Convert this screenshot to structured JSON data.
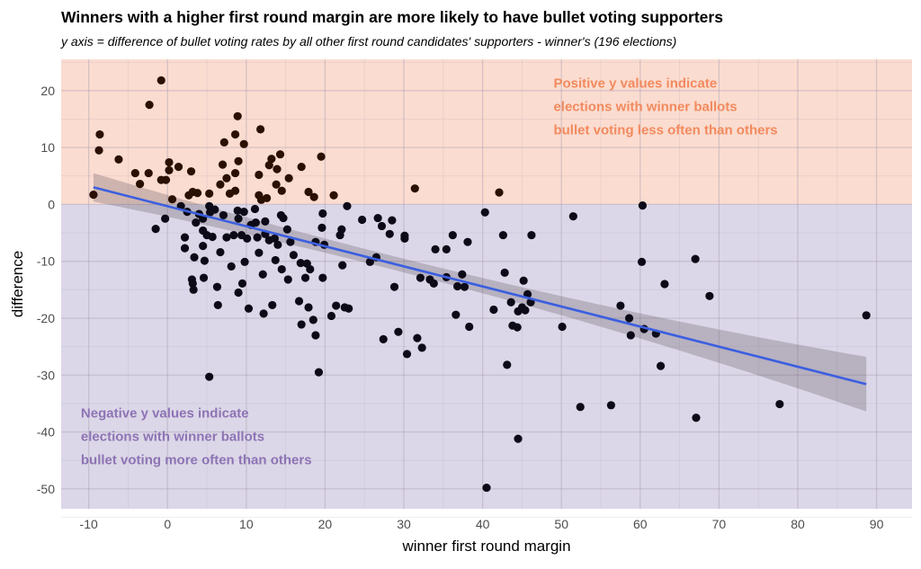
{
  "chart_data": {
    "type": "scatter",
    "title": "Winners with a higher first round margin are more likely to have bullet voting supporters",
    "subtitle": "y axis = difference of bullet voting rates by all other first round candidates' supporters - winner's (196 elections)",
    "xlabel": "winner first round margin",
    "ylabel": "difference",
    "xlim": [
      -13.5,
      94.5
    ],
    "ylim": [
      -53.5,
      25.5
    ],
    "xticks": [
      -10,
      0,
      10,
      20,
      30,
      40,
      50,
      60,
      70,
      80,
      90
    ],
    "xtick_labels": [
      "-10",
      "0",
      "10",
      "20",
      "30",
      "40",
      "50",
      "60",
      "70",
      "80",
      "90"
    ],
    "yticks": [
      20,
      10,
      0,
      -10,
      -20,
      -30,
      -40,
      -50
    ],
    "ytick_labels": [
      "20",
      "10",
      "0",
      "-10",
      "-20",
      "-30",
      "-40",
      "-50"
    ],
    "grid": true,
    "regions": [
      {
        "from": 0,
        "to": 25.5,
        "color": "#fbdcd0"
      },
      {
        "from": -53.5,
        "to": 0,
        "color": "#dcd7e8"
      }
    ],
    "annotations": [
      {
        "lines": [
          "Positive y values indicate",
          "elections with winner ballots",
          "bullet voting less often than others"
        ],
        "color": "#f28a5e",
        "x": 49,
        "y": 20.5
      },
      {
        "lines": [
          "Negative y values indicate",
          "elections with winner ballots",
          "bullet voting more often than others"
        ],
        "color": "#8d74b4",
        "x": -11,
        "y": -37.5
      }
    ],
    "smooth": {
      "method": "linear",
      "color": "#3b5fe0",
      "x_range": [
        -9.4,
        88.7
      ],
      "line": [
        [
          -9.4,
          3.0
        ],
        [
          88.7,
          -31.6
        ]
      ],
      "ci_lower": [
        [
          -9.4,
          0.5
        ],
        [
          25,
          -10.2
        ],
        [
          88.7,
          -36.4
        ]
      ],
      "ci_upper": [
        [
          -9.4,
          5.5
        ],
        [
          25,
          -7.8
        ],
        [
          88.7,
          -26.8
        ]
      ]
    },
    "points": [
      [
        -9.4,
        1.7
      ],
      [
        -8.6,
        12.3
      ],
      [
        -8.7,
        9.5
      ],
      [
        -6.2,
        7.9
      ],
      [
        -4.1,
        5.5
      ],
      [
        -3.5,
        3.6
      ],
      [
        -2.4,
        5.5
      ],
      [
        -2.3,
        17.5
      ],
      [
        -0.8,
        21.8
      ],
      [
        -0.8,
        4.3
      ],
      [
        -0.2,
        4.3
      ],
      [
        0.2,
        6.0
      ],
      [
        0.2,
        7.4
      ],
      [
        1.4,
        6.6
      ],
      [
        3.0,
        5.8
      ],
      [
        2.7,
        1.6
      ],
      [
        3.2,
        2.2
      ],
      [
        3.8,
        2.0
      ],
      [
        5.3,
        1.9
      ],
      [
        6.7,
        3.5
      ],
      [
        7.0,
        7.0
      ],
      [
        7.2,
        10.9
      ],
      [
        7.5,
        4.6
      ],
      [
        7.9,
        1.9
      ],
      [
        8.6,
        2.4
      ],
      [
        8.6,
        5.5
      ],
      [
        8.6,
        12.3
      ],
      [
        8.9,
        15.5
      ],
      [
        9.0,
        7.6
      ],
      [
        9.7,
        10.6
      ],
      [
        11.6,
        1.6
      ],
      [
        11.6,
        5.2
      ],
      [
        11.8,
        13.2
      ],
      [
        11.9,
        0.8
      ],
      [
        12.9,
        6.9
      ],
      [
        13.2,
        8.0
      ],
      [
        13.8,
        3.5
      ],
      [
        13.9,
        6.2
      ],
      [
        14.3,
        8.8
      ],
      [
        14.5,
        2.4
      ],
      [
        15.4,
        4.6
      ],
      [
        17.0,
        6.6
      ],
      [
        17.9,
        2.2
      ],
      [
        18.6,
        1.3
      ],
      [
        19.5,
        8.4
      ],
      [
        21.1,
        1.6
      ],
      [
        31.4,
        2.8
      ],
      [
        42.1,
        2.1
      ],
      [
        0.6,
        0.9
      ],
      [
        12.6,
        1.1
      ],
      [
        -1.5,
        -4.3
      ],
      [
        -0.3,
        -2.5
      ],
      [
        1.7,
        -0.3
      ],
      [
        2.2,
        -5.8
      ],
      [
        2.2,
        -7.7
      ],
      [
        2.5,
        -1.3
      ],
      [
        3.1,
        -13.2
      ],
      [
        3.2,
        -13.9
      ],
      [
        3.3,
        -15.0
      ],
      [
        3.4,
        -9.3
      ],
      [
        4.0,
        -1.7
      ],
      [
        4.5,
        -2.5
      ],
      [
        4.5,
        -4.6
      ],
      [
        4.5,
        -7.3
      ],
      [
        4.7,
        -9.9
      ],
      [
        4.6,
        -12.9
      ],
      [
        5.0,
        -5.4
      ],
      [
        5.3,
        -0.3
      ],
      [
        5.4,
        -1.4
      ],
      [
        5.7,
        -5.7
      ],
      [
        5.3,
        -30.3
      ],
      [
        6.3,
        -14.5
      ],
      [
        6.4,
        -17.7
      ],
      [
        6.7,
        -8.4
      ],
      [
        7.1,
        -1.9
      ],
      [
        7.5,
        -5.8
      ],
      [
        8.1,
        -10.9
      ],
      [
        8.4,
        -5.4
      ],
      [
        8.9,
        -1.1
      ],
      [
        9.0,
        -2.5
      ],
      [
        9.0,
        -15.5
      ],
      [
        9.4,
        -5.4
      ],
      [
        9.5,
        -13.9
      ],
      [
        9.7,
        -1.3
      ],
      [
        9.8,
        -10.1
      ],
      [
        10.3,
        -18.3
      ],
      [
        11.1,
        -0.8
      ],
      [
        11.2,
        -3.2
      ],
      [
        11.4,
        -5.8
      ],
      [
        11.6,
        -8.5
      ],
      [
        12.1,
        -12.3
      ],
      [
        12.4,
        -3.0
      ],
      [
        12.4,
        -5.2
      ],
      [
        12.2,
        -19.2
      ],
      [
        12.9,
        -6.3
      ],
      [
        13.3,
        -17.7
      ],
      [
        13.6,
        -6.0
      ],
      [
        13.7,
        -9.8
      ],
      [
        14.0,
        -7.1
      ],
      [
        14.4,
        -1.9
      ],
      [
        14.5,
        -11.4
      ],
      [
        14.7,
        -2.4
      ],
      [
        15.2,
        -4.4
      ],
      [
        15.3,
        -13.2
      ],
      [
        15.6,
        -6.6
      ],
      [
        16.7,
        -17.0
      ],
      [
        16.9,
        -10.3
      ],
      [
        17.0,
        -21.1
      ],
      [
        17.5,
        -12.9
      ],
      [
        17.7,
        -10.4
      ],
      [
        17.9,
        -18.1
      ],
      [
        18.1,
        -11.4
      ],
      [
        18.5,
        -20.3
      ],
      [
        18.8,
        -23.0
      ],
      [
        19.2,
        -29.5
      ],
      [
        18.8,
        -6.6
      ],
      [
        19.6,
        -4.1
      ],
      [
        19.7,
        -12.9
      ],
      [
        19.9,
        -7.1
      ],
      [
        19.7,
        -1.6
      ],
      [
        20.8,
        -19.6
      ],
      [
        21.4,
        -17.8
      ],
      [
        21.9,
        -5.4
      ],
      [
        22.2,
        -10.7
      ],
      [
        22.1,
        -4.4
      ],
      [
        22.5,
        -18.1
      ],
      [
        22.8,
        -0.3
      ],
      [
        23.0,
        -18.3
      ],
      [
        24.7,
        -2.7
      ],
      [
        25.7,
        -10.1
      ],
      [
        26.5,
        -9.3
      ],
      [
        26.7,
        -2.4
      ],
      [
        27.2,
        -3.8
      ],
      [
        27.4,
        -23.7
      ],
      [
        28.2,
        -5.2
      ],
      [
        28.5,
        -2.8
      ],
      [
        28.8,
        -14.5
      ],
      [
        29.3,
        -22.4
      ],
      [
        30.1,
        -6.0
      ],
      [
        30.1,
        -5.5
      ],
      [
        30.4,
        -26.3
      ],
      [
        31.7,
        -23.5
      ],
      [
        32.1,
        -12.9
      ],
      [
        32.3,
        -25.2
      ],
      [
        33.3,
        -13.2
      ],
      [
        33.8,
        -13.9
      ],
      [
        34.0,
        -7.9
      ],
      [
        35.4,
        -7.9
      ],
      [
        35.4,
        -12.8
      ],
      [
        36.2,
        -5.4
      ],
      [
        36.6,
        -19.4
      ],
      [
        36.8,
        -14.4
      ],
      [
        37.4,
        -12.3
      ],
      [
        37.7,
        -14.5
      ],
      [
        38.1,
        -6.6
      ],
      [
        38.3,
        -21.5
      ],
      [
        40.3,
        -1.4
      ],
      [
        41.4,
        -18.5
      ],
      [
        40.5,
        -49.8
      ],
      [
        42.6,
        -5.4
      ],
      [
        42.8,
        -12.0
      ],
      [
        43.1,
        -28.2
      ],
      [
        43.6,
        -17.2
      ],
      [
        43.8,
        -21.3
      ],
      [
        44.4,
        -21.6
      ],
      [
        44.5,
        -18.8
      ],
      [
        44.5,
        -41.2
      ],
      [
        45.0,
        -18.1
      ],
      [
        45.2,
        -13.4
      ],
      [
        45.4,
        -18.6
      ],
      [
        45.7,
        -15.8
      ],
      [
        46.1,
        -17.2
      ],
      [
        46.2,
        -5.4
      ],
      [
        50.1,
        -21.5
      ],
      [
        51.5,
        -2.1
      ],
      [
        52.4,
        -35.6
      ],
      [
        56.3,
        -35.3
      ],
      [
        57.5,
        -17.8
      ],
      [
        58.6,
        -20.0
      ],
      [
        58.8,
        -23.0
      ],
      [
        60.2,
        -10.1
      ],
      [
        60.3,
        -0.2
      ],
      [
        60.5,
        -21.9
      ],
      [
        62.0,
        -22.7
      ],
      [
        62.6,
        -28.4
      ],
      [
        63.1,
        -14.0
      ],
      [
        67.0,
        -9.6
      ],
      [
        67.1,
        -37.5
      ],
      [
        68.8,
        -16.1
      ],
      [
        77.7,
        -35.1
      ],
      [
        88.7,
        -19.5
      ],
      [
        10.6,
        -3.6
      ],
      [
        16.0,
        -8.9
      ],
      [
        3.6,
        -3.2
      ],
      [
        6.0,
        -0.9
      ],
      [
        10.1,
        -6.0
      ]
    ]
  }
}
